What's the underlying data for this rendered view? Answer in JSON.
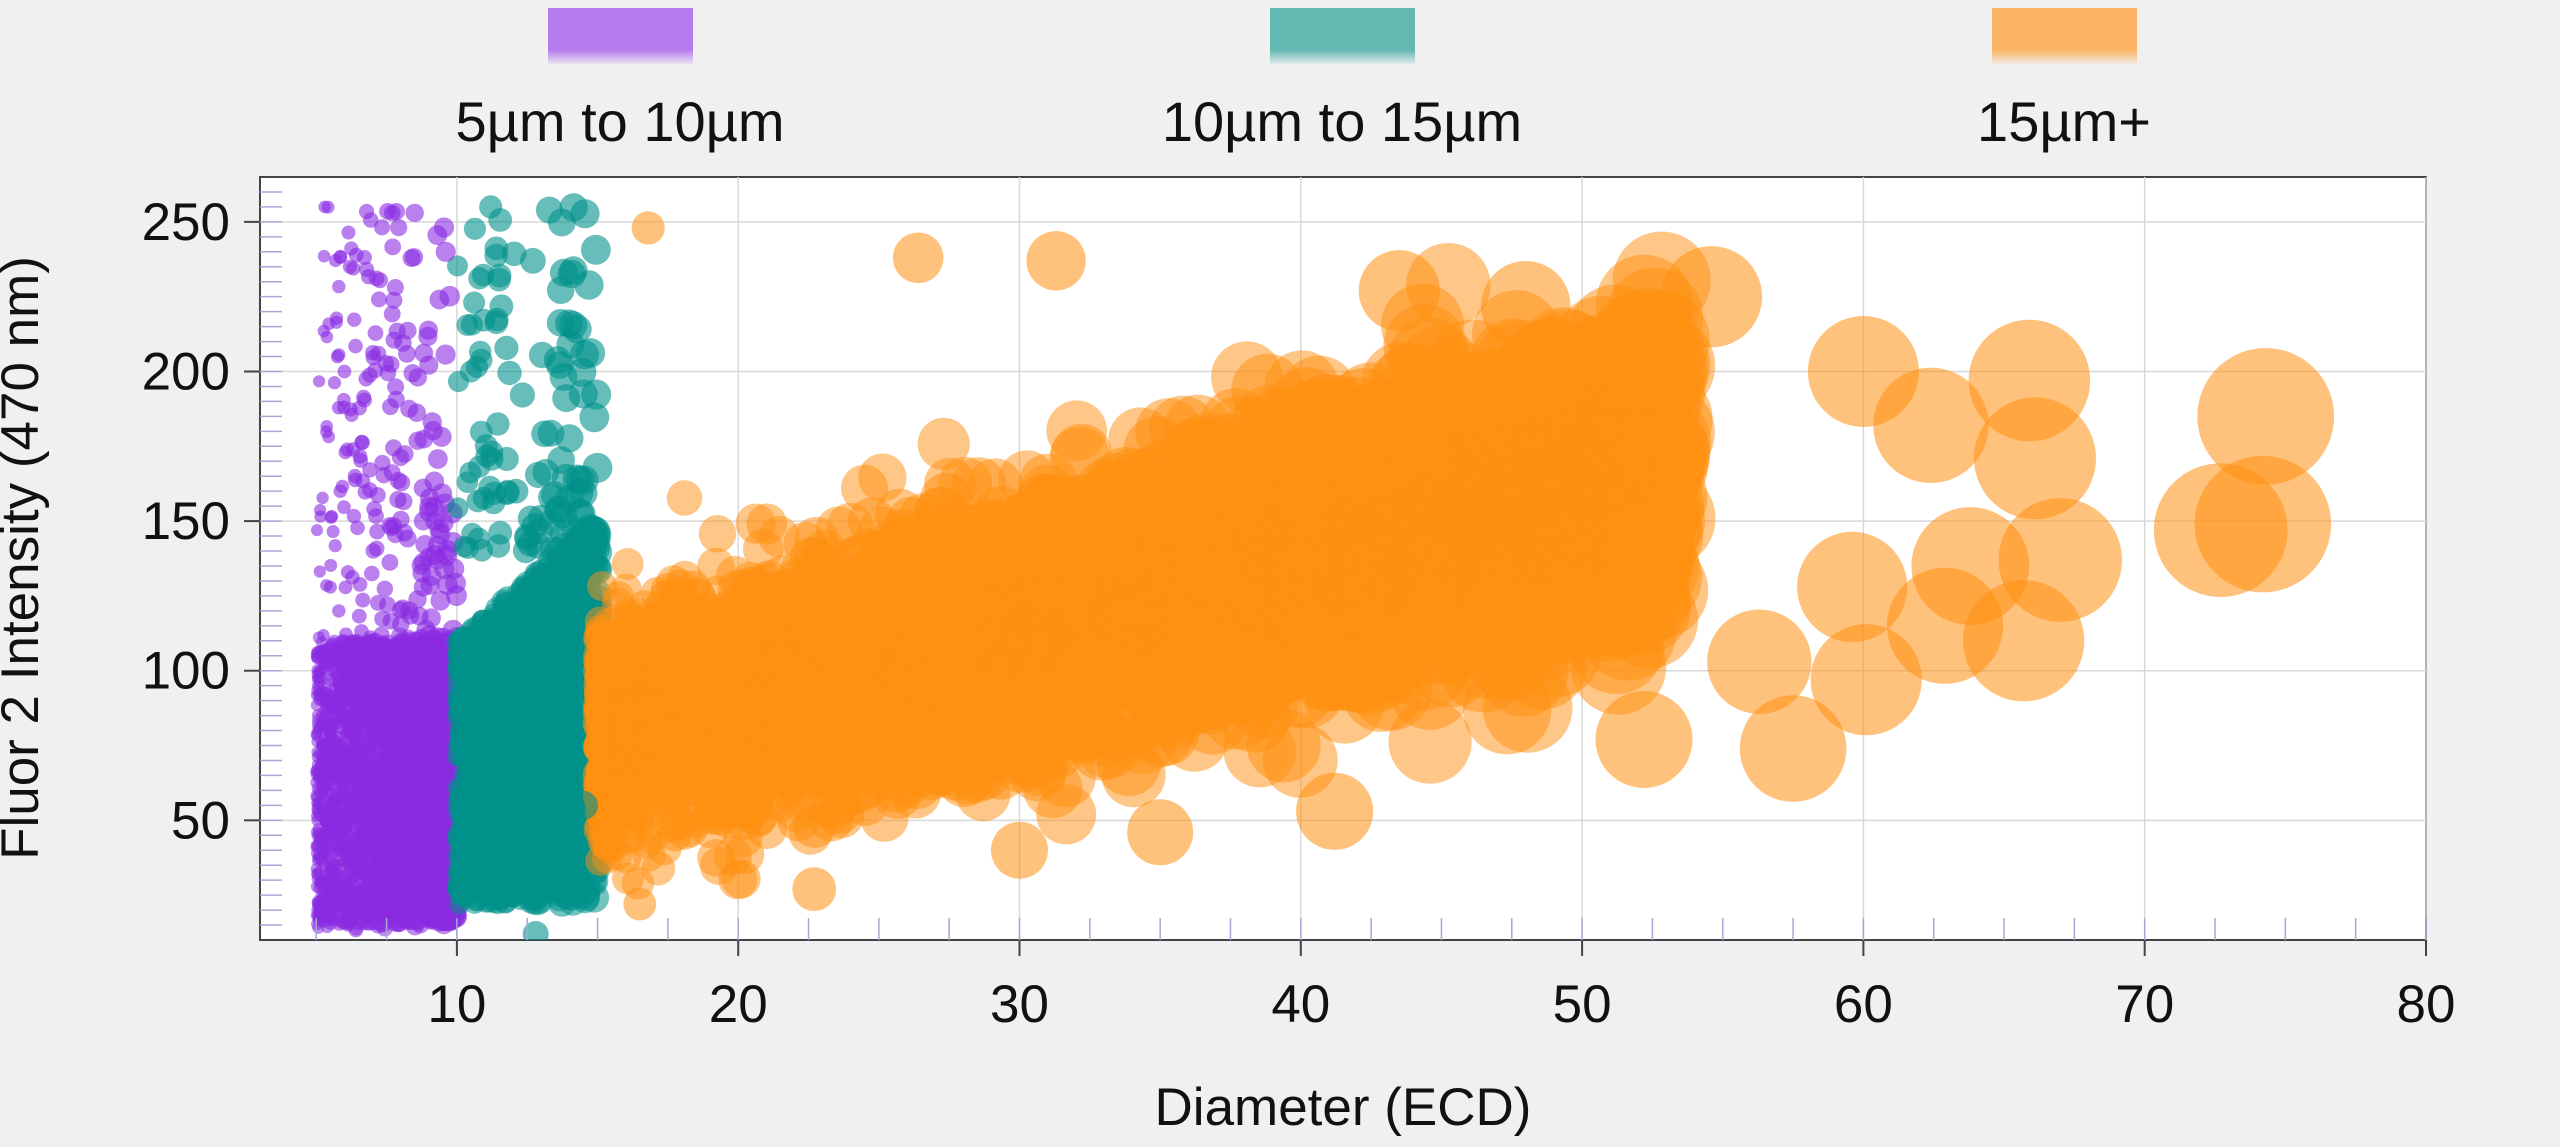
{
  "chart_data": {
    "type": "scatter",
    "title": "",
    "xlabel": "Diameter (ECD)",
    "ylabel": "Fluor 2 Intensity (470 nm)",
    "xlim": [
      3,
      80
    ],
    "ylim": [
      10,
      265
    ],
    "x_ticks": [
      10,
      20,
      30,
      40,
      50,
      60,
      70,
      80
    ],
    "y_ticks": [
      50,
      100,
      150,
      200,
      250
    ],
    "grid": true,
    "legend_position": "top",
    "marker_size_encodes": "x",
    "series": [
      {
        "name": "5µm to 10µm",
        "color": "#8a2be2",
        "x_range": [
          5,
          10
        ],
        "sample_points": [
          [
            5.3,
            255
          ],
          [
            6.2,
            235
          ],
          [
            7.7,
            253
          ],
          [
            8.5,
            253
          ],
          [
            6.0,
            200
          ],
          [
            8.8,
            150
          ],
          [
            5.8,
            120
          ],
          [
            7.0,
            85
          ],
          [
            6.5,
            55
          ],
          [
            5.5,
            30
          ],
          [
            8.0,
            20
          ],
          [
            9.6,
            240
          ]
        ],
        "density": "very dense for y 15–110, sparse up to 255"
      },
      {
        "name": "10µm to 15µm",
        "color": "#00918a",
        "x_range": [
          10,
          15
        ],
        "sample_points": [
          [
            11.2,
            255
          ],
          [
            12.7,
            237
          ],
          [
            13.8,
            233
          ],
          [
            10.5,
            200
          ],
          [
            12.1,
            160
          ],
          [
            13.6,
            140
          ],
          [
            11.6,
            115
          ],
          [
            12.8,
            80
          ],
          [
            14.5,
            55
          ],
          [
            12.0,
            25
          ],
          [
            12.8,
            12
          ]
        ],
        "density": "dense for y 25–145, sparse up to 255"
      },
      {
        "name": "15µm+",
        "color": "#ff9010",
        "x_range": [
          15,
          75
        ],
        "sample_points": [
          [
            16.8,
            248
          ],
          [
            26.4,
            238
          ],
          [
            31.3,
            237
          ],
          [
            43.5,
            227
          ],
          [
            54.6,
            225
          ],
          [
            48.0,
            222
          ],
          [
            60.0,
            200
          ],
          [
            65.9,
            197
          ],
          [
            74.3,
            185
          ],
          [
            66.1,
            171
          ],
          [
            62.4,
            182
          ],
          [
            72.7,
            147
          ],
          [
            74.2,
            149
          ],
          [
            67.0,
            137
          ],
          [
            63.8,
            135
          ],
          [
            59.6,
            128
          ],
          [
            62.9,
            115
          ],
          [
            65.7,
            110
          ],
          [
            60.1,
            97
          ],
          [
            56.3,
            103
          ],
          [
            57.5,
            74
          ],
          [
            52.2,
            77
          ],
          [
            35.0,
            46
          ],
          [
            41.2,
            53
          ],
          [
            30.0,
            40
          ],
          [
            22.7,
            27
          ],
          [
            16.5,
            22
          ],
          [
            20.0,
            60
          ],
          [
            25.0,
            90
          ],
          [
            33.0,
            130
          ],
          [
            38.0,
            160
          ],
          [
            45.0,
            185
          ],
          [
            50.0,
            160
          ]
        ],
        "density": "dense cloud rising from y 25–190 at x 15 to y 90–220 at x 50, sparse large points beyond x 55"
      }
    ]
  }
}
